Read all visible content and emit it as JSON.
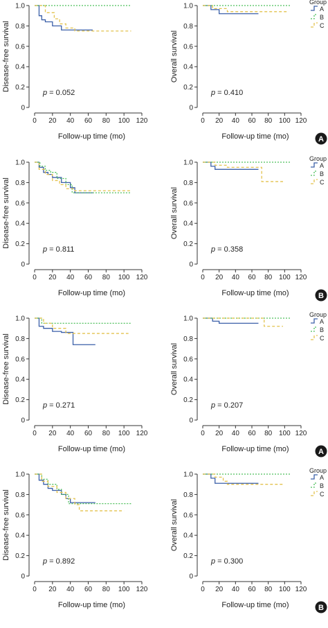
{
  "colors": {
    "A": "#3a5fa8",
    "B": "#4cbf5a",
    "C": "#e3c24d",
    "axis": "#333333"
  },
  "common": {
    "x_ticks": [
      "0",
      "20",
      "40",
      "60",
      "80",
      "100",
      "120"
    ],
    "y_ticks": [
      "0",
      "0.2",
      "0.4",
      "0.6",
      "0.8",
      "1.0"
    ],
    "xlabel": "Follow-up time (mo)",
    "legend_title": "Group",
    "group_labels": [
      "A",
      "B",
      "C"
    ]
  },
  "panels": [
    {
      "panel_label": "A"
    },
    {
      "panel_label": "B"
    },
    {
      "panel_label": "A"
    },
    {
      "panel_label": "B"
    }
  ],
  "chart_data": [
    {
      "type": "line",
      "panel": 1,
      "ylabel": "Disease-free survival",
      "p_value": "p = 0.052",
      "xlim": [
        0,
        120
      ],
      "ylim": [
        0,
        1
      ],
      "legend": "none",
      "series": [
        {
          "name": "A",
          "x": [
            0,
            5,
            8,
            12,
            20,
            30,
            40,
            65
          ],
          "y": [
            1.0,
            0.9,
            0.86,
            0.84,
            0.8,
            0.76,
            0.76,
            0.76
          ]
        },
        {
          "name": "B",
          "x": [
            0,
            108
          ],
          "y": [
            1.0,
            1.0
          ]
        },
        {
          "name": "C",
          "x": [
            0,
            12,
            22,
            28,
            35,
            45,
            108
          ],
          "y": [
            1.0,
            0.93,
            0.87,
            0.82,
            0.78,
            0.75,
            0.75
          ]
        }
      ]
    },
    {
      "type": "line",
      "panel": 1,
      "ylabel": "Overall survival",
      "p_value": "p = 0.410",
      "xlim": [
        0,
        120
      ],
      "ylim": [
        0,
        1
      ],
      "legend": "right",
      "series": [
        {
          "name": "A",
          "x": [
            0,
            10,
            20,
            68
          ],
          "y": [
            1.0,
            0.96,
            0.92,
            0.92
          ]
        },
        {
          "name": "B",
          "x": [
            0,
            108
          ],
          "y": [
            1.0,
            1.0
          ]
        },
        {
          "name": "C",
          "x": [
            0,
            12,
            30,
            105
          ],
          "y": [
            1.0,
            0.97,
            0.94,
            0.94
          ]
        }
      ]
    },
    {
      "type": "line",
      "panel": 2,
      "ylabel": "Disease-free survival",
      "p_value": "p = 0.811",
      "xlim": [
        0,
        120
      ],
      "ylim": [
        0,
        1
      ],
      "legend": "none",
      "series": [
        {
          "name": "A",
          "x": [
            0,
            5,
            10,
            15,
            20,
            30,
            40,
            45,
            65
          ],
          "y": [
            1.0,
            0.95,
            0.9,
            0.88,
            0.85,
            0.8,
            0.75,
            0.7,
            0.7
          ]
        },
        {
          "name": "B",
          "x": [
            0,
            6,
            12,
            18,
            25,
            35,
            42,
            108
          ],
          "y": [
            1.0,
            0.96,
            0.92,
            0.9,
            0.84,
            0.78,
            0.7,
            0.7
          ]
        },
        {
          "name": "C",
          "x": [
            0,
            5,
            12,
            20,
            28,
            35,
            45,
            108
          ],
          "y": [
            1.0,
            0.93,
            0.88,
            0.82,
            0.78,
            0.74,
            0.72,
            0.72
          ]
        }
      ]
    },
    {
      "type": "line",
      "panel": 2,
      "ylabel": "Overall survival",
      "p_value": "p = 0.358",
      "xlim": [
        0,
        120
      ],
      "ylim": [
        0,
        1
      ],
      "legend": "right",
      "series": [
        {
          "name": "A",
          "x": [
            0,
            10,
            15,
            68
          ],
          "y": [
            1.0,
            0.96,
            0.93,
            0.93
          ]
        },
        {
          "name": "B",
          "x": [
            0,
            108
          ],
          "y": [
            1.0,
            1.0
          ]
        },
        {
          "name": "C",
          "x": [
            0,
            15,
            30,
            70,
            72,
            98
          ],
          "y": [
            1.0,
            0.97,
            0.95,
            0.95,
            0.81,
            0.81
          ]
        }
      ]
    },
    {
      "type": "line",
      "panel": 3,
      "ylabel": "Disease-free survival",
      "p_value": "p = 0.271",
      "xlim": [
        0,
        120
      ],
      "ylim": [
        0,
        1
      ],
      "legend": "none",
      "series": [
        {
          "name": "A",
          "x": [
            0,
            5,
            10,
            20,
            30,
            40,
            43,
            68
          ],
          "y": [
            1.0,
            0.92,
            0.9,
            0.87,
            0.86,
            0.86,
            0.74,
            0.74
          ]
        },
        {
          "name": "B",
          "x": [
            0,
            8,
            108
          ],
          "y": [
            1.0,
            0.95,
            0.95
          ]
        },
        {
          "name": "C",
          "x": [
            0,
            10,
            20,
            35,
            105
          ],
          "y": [
            1.0,
            0.95,
            0.9,
            0.85,
            0.85
          ]
        }
      ]
    },
    {
      "type": "line",
      "panel": 3,
      "ylabel": "Overall survival",
      "p_value": "p = 0.207",
      "xlim": [
        0,
        120
      ],
      "ylim": [
        0,
        1
      ],
      "legend": "right",
      "series": [
        {
          "name": "A",
          "x": [
            0,
            12,
            20,
            68
          ],
          "y": [
            1.0,
            0.97,
            0.95,
            0.95
          ]
        },
        {
          "name": "B",
          "x": [
            0,
            108
          ],
          "y": [
            1.0,
            1.0
          ]
        },
        {
          "name": "C",
          "x": [
            0,
            15,
            72,
            75,
            98
          ],
          "y": [
            1.0,
            1.0,
            1.0,
            0.92,
            0.92
          ]
        }
      ]
    },
    {
      "type": "line",
      "panel": 4,
      "ylabel": "Disease-free survival",
      "p_value": "p = 0.892",
      "xlim": [
        0,
        120
      ],
      "ylim": [
        0,
        1
      ],
      "legend": "none",
      "series": [
        {
          "name": "A",
          "x": [
            0,
            5,
            10,
            15,
            20,
            30,
            35,
            40,
            68
          ],
          "y": [
            1.0,
            0.94,
            0.9,
            0.86,
            0.84,
            0.8,
            0.76,
            0.72,
            0.72
          ]
        },
        {
          "name": "B",
          "x": [
            0,
            8,
            15,
            25,
            30,
            38,
            108
          ],
          "y": [
            1.0,
            0.95,
            0.9,
            0.85,
            0.8,
            0.71,
            0.71
          ]
        },
        {
          "name": "C",
          "x": [
            0,
            8,
            15,
            25,
            35,
            45,
            50,
            100
          ],
          "y": [
            1.0,
            0.93,
            0.88,
            0.82,
            0.76,
            0.7,
            0.64,
            0.64
          ]
        }
      ]
    },
    {
      "type": "line",
      "panel": 4,
      "ylabel": "Overall survival",
      "p_value": "p = 0.300",
      "xlim": [
        0,
        120
      ],
      "ylim": [
        0,
        1
      ],
      "legend": "right",
      "series": [
        {
          "name": "A",
          "x": [
            0,
            10,
            15,
            68
          ],
          "y": [
            1.0,
            0.96,
            0.91,
            0.91
          ]
        },
        {
          "name": "B",
          "x": [
            0,
            108
          ],
          "y": [
            1.0,
            1.0
          ]
        },
        {
          "name": "C",
          "x": [
            0,
            15,
            25,
            30,
            98
          ],
          "y": [
            1.0,
            0.97,
            0.93,
            0.9,
            0.9
          ]
        }
      ]
    }
  ]
}
